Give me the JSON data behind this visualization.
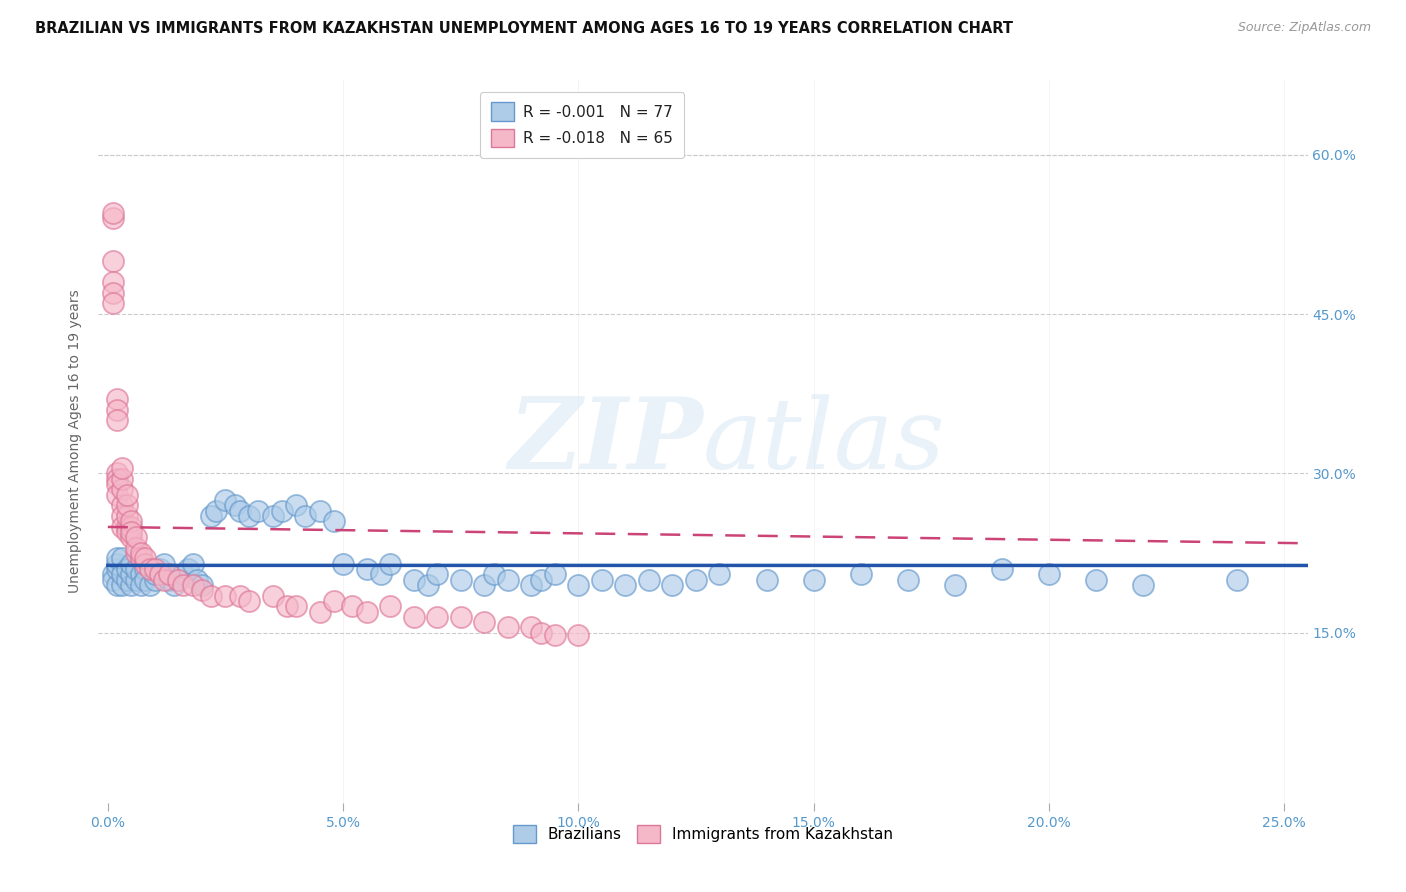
{
  "title": "BRAZILIAN VS IMMIGRANTS FROM KAZAKHSTAN UNEMPLOYMENT AMONG AGES 16 TO 19 YEARS CORRELATION CHART",
  "source": "Source: ZipAtlas.com",
  "ylabel": "Unemployment Among Ages 16 to 19 years",
  "x_tick_labels": [
    "0.0%",
    "5.0%",
    "10.0%",
    "15.0%",
    "20.0%",
    "25.0%"
  ],
  "x_tick_values": [
    0.0,
    0.05,
    0.1,
    0.15,
    0.2,
    0.25
  ],
  "y_tick_labels_right": [
    "60.0%",
    "45.0%",
    "30.0%",
    "15.0%"
  ],
  "y_tick_values_right": [
    0.6,
    0.45,
    0.3,
    0.15
  ],
  "xlim": [
    -0.002,
    0.255
  ],
  "ylim": [
    -0.01,
    0.67
  ],
  "color_blue_fill": "#AECCE8",
  "color_blue_edge": "#6699CC",
  "color_blue_line": "#2255AA",
  "color_pink_fill": "#F5B8C8",
  "color_pink_edge": "#DD7799",
  "color_pink_line": "#CC4477",
  "color_axis": "#5599CC",
  "background_color": "#FFFFFF",
  "grid_color": "#CCCCCC",
  "legend_label1": "R = -0.001   N = 77",
  "legend_label2": "R = -0.018   N = 65",
  "legend_r1": "R = -0.001",
  "legend_n1": "N = 77",
  "legend_r2": "R = -0.018",
  "legend_n2": "N = 65",
  "bottom_label1": "Brazilians",
  "bottom_label2": "Immigrants from Kazakhstan",
  "brazilians_x": [
    0.001,
    0.001,
    0.002,
    0.002,
    0.002,
    0.002,
    0.003,
    0.003,
    0.003,
    0.004,
    0.004,
    0.005,
    0.005,
    0.005,
    0.006,
    0.006,
    0.007,
    0.007,
    0.008,
    0.008,
    0.009,
    0.01,
    0.01,
    0.011,
    0.012,
    0.013,
    0.014,
    0.015,
    0.016,
    0.017,
    0.018,
    0.019,
    0.02,
    0.022,
    0.023,
    0.025,
    0.027,
    0.028,
    0.03,
    0.032,
    0.035,
    0.037,
    0.04,
    0.042,
    0.045,
    0.048,
    0.05,
    0.055,
    0.058,
    0.06,
    0.065,
    0.068,
    0.07,
    0.075,
    0.08,
    0.082,
    0.085,
    0.09,
    0.092,
    0.095,
    0.1,
    0.105,
    0.11,
    0.115,
    0.12,
    0.125,
    0.13,
    0.14,
    0.15,
    0.16,
    0.17,
    0.18,
    0.19,
    0.2,
    0.21,
    0.22,
    0.24
  ],
  "brazilians_y": [
    0.205,
    0.2,
    0.195,
    0.21,
    0.215,
    0.22,
    0.195,
    0.205,
    0.22,
    0.2,
    0.21,
    0.195,
    0.205,
    0.215,
    0.2,
    0.21,
    0.205,
    0.195,
    0.21,
    0.2,
    0.195,
    0.2,
    0.205,
    0.21,
    0.215,
    0.2,
    0.195,
    0.2,
    0.205,
    0.21,
    0.215,
    0.2,
    0.195,
    0.26,
    0.265,
    0.275,
    0.27,
    0.265,
    0.26,
    0.265,
    0.26,
    0.265,
    0.27,
    0.26,
    0.265,
    0.255,
    0.215,
    0.21,
    0.205,
    0.215,
    0.2,
    0.195,
    0.205,
    0.2,
    0.195,
    0.205,
    0.2,
    0.195,
    0.2,
    0.205,
    0.195,
    0.2,
    0.195,
    0.2,
    0.195,
    0.2,
    0.205,
    0.2,
    0.2,
    0.205,
    0.2,
    0.195,
    0.21,
    0.205,
    0.2,
    0.195,
    0.2
  ],
  "kazakhstan_x": [
    0.001,
    0.001,
    0.001,
    0.001,
    0.001,
    0.001,
    0.002,
    0.002,
    0.002,
    0.002,
    0.002,
    0.002,
    0.002,
    0.003,
    0.003,
    0.003,
    0.003,
    0.003,
    0.003,
    0.004,
    0.004,
    0.004,
    0.004,
    0.004,
    0.005,
    0.005,
    0.005,
    0.005,
    0.006,
    0.006,
    0.006,
    0.007,
    0.007,
    0.008,
    0.008,
    0.009,
    0.01,
    0.011,
    0.012,
    0.013,
    0.015,
    0.016,
    0.018,
    0.02,
    0.022,
    0.025,
    0.028,
    0.03,
    0.035,
    0.038,
    0.04,
    0.045,
    0.048,
    0.052,
    0.055,
    0.06,
    0.065,
    0.07,
    0.075,
    0.08,
    0.085,
    0.09,
    0.092,
    0.095,
    0.1
  ],
  "kazakhstan_y": [
    0.54,
    0.545,
    0.5,
    0.48,
    0.47,
    0.46,
    0.37,
    0.36,
    0.35,
    0.3,
    0.295,
    0.29,
    0.28,
    0.27,
    0.26,
    0.25,
    0.285,
    0.295,
    0.305,
    0.25,
    0.245,
    0.26,
    0.27,
    0.28,
    0.24,
    0.25,
    0.255,
    0.245,
    0.225,
    0.23,
    0.24,
    0.22,
    0.225,
    0.215,
    0.22,
    0.21,
    0.21,
    0.205,
    0.2,
    0.205,
    0.2,
    0.195,
    0.195,
    0.19,
    0.185,
    0.185,
    0.185,
    0.18,
    0.185,
    0.175,
    0.175,
    0.17,
    0.18,
    0.175,
    0.17,
    0.175,
    0.165,
    0.165,
    0.165,
    0.16,
    0.155,
    0.155,
    0.15,
    0.148,
    0.148
  ]
}
